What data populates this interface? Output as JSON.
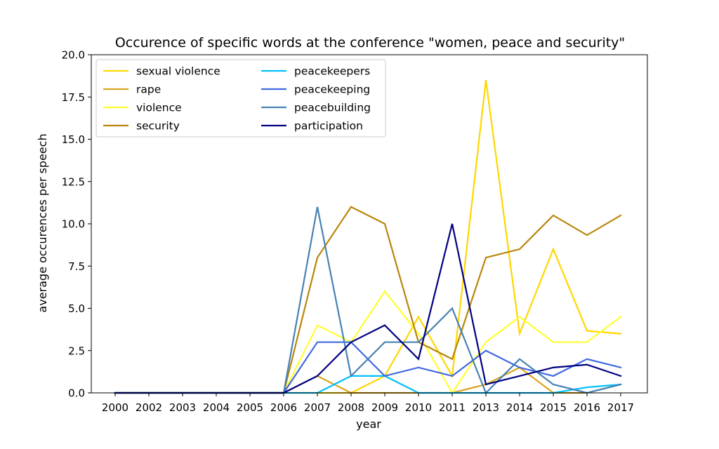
{
  "chart_data": {
    "type": "line",
    "title": "Occurence of specific words at the conference \"women, peace and security\"",
    "xlabel": "year",
    "ylabel": "average occurences per speech",
    "categories": [
      "2000",
      "2002",
      "2003",
      "2004",
      "2005",
      "2006",
      "2007",
      "2008",
      "2009",
      "2010",
      "2011",
      "2013",
      "2014",
      "2015",
      "2016",
      "2017"
    ],
    "ylim": [
      0,
      20
    ],
    "yticks": [
      "0.0",
      "2.5",
      "5.0",
      "7.5",
      "10.0",
      "12.5",
      "15.0",
      "17.5",
      "20.0"
    ],
    "grid": false,
    "legend_position": "top-left",
    "series": [
      {
        "name": "sexual violence",
        "color": "#FFD700",
        "values": [
          0,
          0,
          0,
          0,
          0,
          0,
          0,
          0,
          1,
          4.5,
          1,
          18.5,
          3.5,
          8.5,
          3.67,
          3.5
        ]
      },
      {
        "name": "rape",
        "color": "#DAA520",
        "values": [
          0,
          0,
          0,
          0,
          0,
          0,
          1,
          0,
          0,
          0,
          0,
          0.5,
          1.5,
          0,
          0,
          0.5
        ]
      },
      {
        "name": "violence",
        "color": "#FFFF33",
        "values": [
          0,
          0,
          0,
          0,
          0,
          0,
          4,
          3,
          6,
          3.5,
          0,
          3,
          4.5,
          3,
          3,
          4.5
        ]
      },
      {
        "name": "security",
        "color": "#B8860B",
        "values": [
          0,
          0,
          0,
          0,
          0,
          0,
          8,
          11,
          10,
          3,
          2,
          8,
          8.5,
          10.5,
          9.33,
          10.5
        ]
      },
      {
        "name": "peacekeepers",
        "color": "#00BFFF",
        "values": [
          0,
          0,
          0,
          0,
          0,
          0,
          0,
          1,
          1,
          0,
          0,
          0,
          0,
          0,
          0.33,
          0.5
        ]
      },
      {
        "name": "peacekeeping",
        "color": "#4169E1",
        "values": [
          0,
          0,
          0,
          0,
          0,
          0,
          3,
          3,
          1,
          1.5,
          1,
          2.5,
          1.5,
          1,
          2,
          1.5
        ]
      },
      {
        "name": "peacebuilding",
        "color": "#4682B4",
        "values": [
          0,
          0,
          0,
          0,
          0,
          0,
          11,
          1,
          3,
          3,
          5,
          0,
          2,
          0.5,
          0,
          0.5
        ]
      },
      {
        "name": "participation",
        "color": "#000080",
        "values": [
          0,
          0,
          0,
          0,
          0,
          0,
          1,
          3,
          4,
          2,
          10,
          0.5,
          1,
          1.5,
          1.67,
          1
        ]
      }
    ]
  }
}
